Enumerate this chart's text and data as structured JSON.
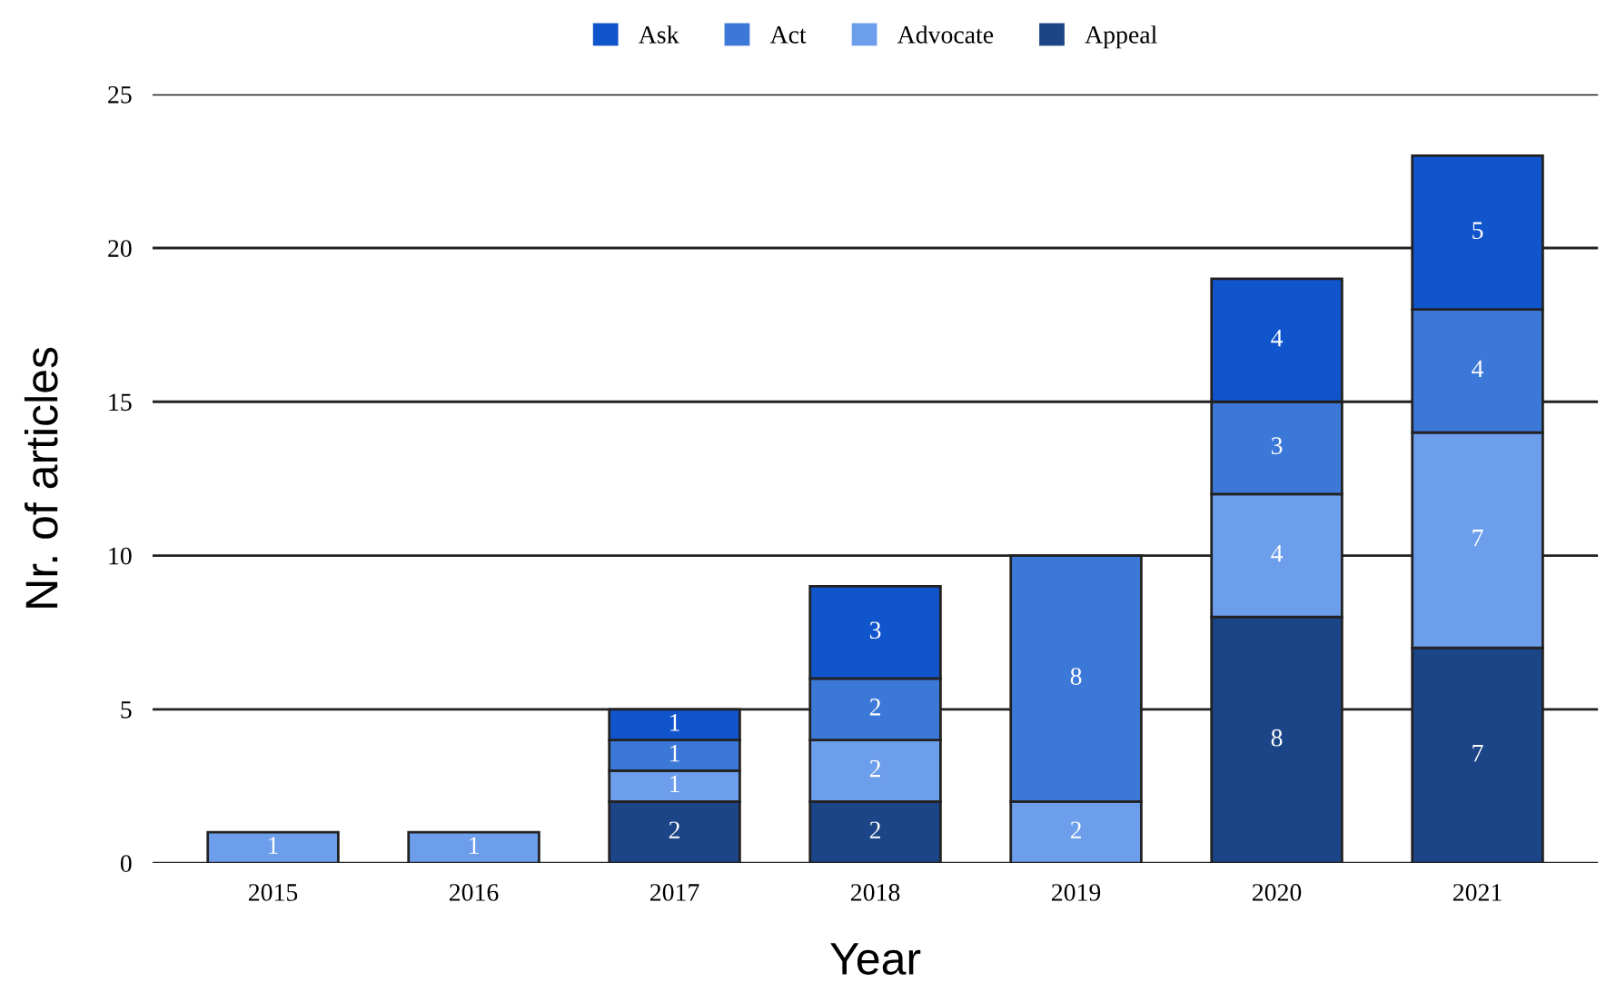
{
  "chart_data": {
    "type": "bar",
    "stacked": true,
    "xlabel": "Year",
    "ylabel": "Nr. of articles",
    "categories": [
      "2015",
      "2016",
      "2017",
      "2018",
      "2019",
      "2020",
      "2021"
    ],
    "series": [
      {
        "name": "Appeal",
        "color": "#1c4587",
        "values": [
          null,
          null,
          2,
          2,
          null,
          8,
          7
        ]
      },
      {
        "name": "Advocate",
        "color": "#6d9eeb",
        "values": [
          1,
          1,
          1,
          2,
          2,
          4,
          7
        ]
      },
      {
        "name": "Act",
        "color": "#3c78d8",
        "values": [
          null,
          null,
          1,
          2,
          8,
          3,
          4
        ]
      },
      {
        "name": "Ask",
        "color": "#1155cc",
        "values": [
          null,
          null,
          1,
          3,
          null,
          4,
          5
        ]
      }
    ],
    "ylim": [
      0,
      25
    ],
    "yticks": [
      0,
      5,
      10,
      15,
      20,
      25
    ],
    "grid": "y",
    "legend": "top",
    "data_labels": true
  }
}
